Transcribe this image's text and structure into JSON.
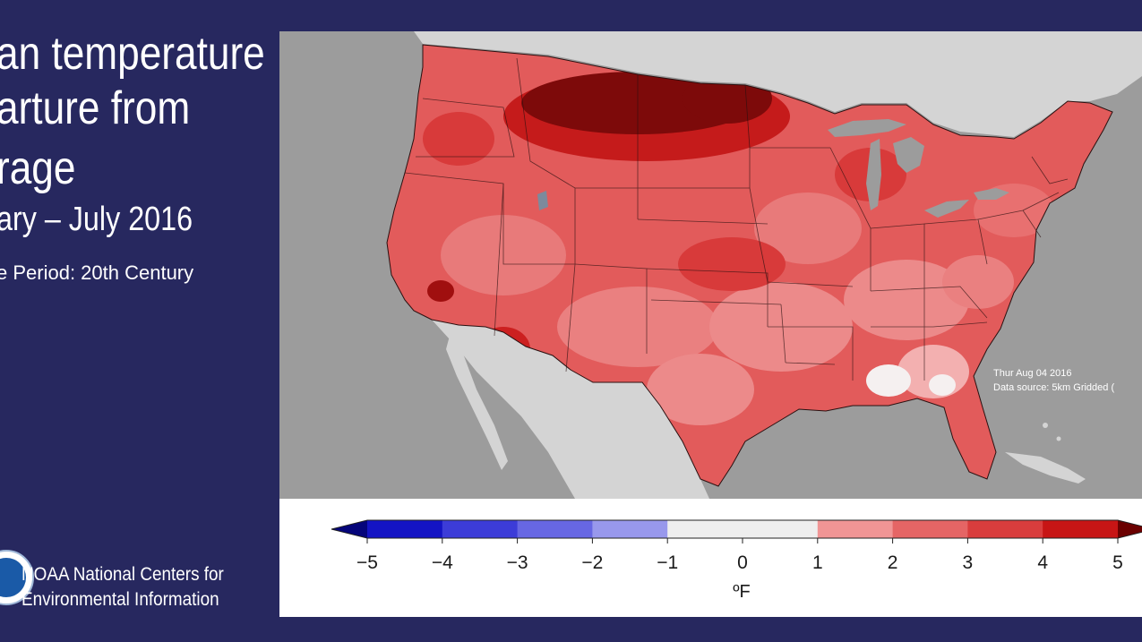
{
  "title": {
    "line1": "an temperature",
    "line2": "arture from",
    "line3": "rage",
    "period": "ary – July 2016",
    "base_period": "e Period: 20th Century"
  },
  "footer": {
    "org_line1": "NOAA National Centers for",
    "org_line2": "Environmental Information"
  },
  "map": {
    "note_date": "Thur Aug 04 2016",
    "note_source": "Data source: 5km Gridded (",
    "background_color": "#9c9c9c",
    "land_outside_color": "#d4d4d4"
  },
  "legend": {
    "ticks": [
      "−5",
      "−4",
      "−3",
      "−2",
      "−1",
      "0",
      "1",
      "2",
      "3",
      "4",
      "5"
    ],
    "unit": "ºF",
    "colors": {
      "below_min": "#05057a",
      "bins": [
        "#1414c4",
        "#3c3cd8",
        "#6767e3",
        "#9898ec",
        "#eeeeee",
        "#eeeeee",
        "#f09595",
        "#e56565",
        "#d93d3d",
        "#c71515"
      ],
      "above_max": "#6b0000"
    }
  }
}
